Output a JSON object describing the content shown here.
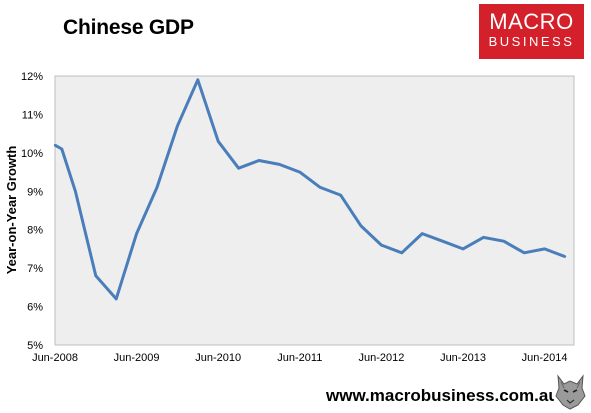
{
  "title": "Chinese GDP",
  "logo": {
    "line1": "MACRO",
    "line2": "BUSINESS",
    "color": "#d4202a"
  },
  "footer": {
    "url": "www.macrobusiness.com.au"
  },
  "chart_data": {
    "type": "line",
    "ylabel": "Year-on-Year Growth",
    "ylim": [
      5,
      12
    ],
    "yticks": [
      "5%",
      "6%",
      "7%",
      "8%",
      "9%",
      "10%",
      "11%",
      "12%"
    ],
    "xticks": [
      "Jun-2008",
      "Jun-2009",
      "Jun-2010",
      "Jun-2011",
      "Jun-2012",
      "Jun-2013",
      "Jun-2014"
    ],
    "grid": false,
    "line_color": "#4a7ebb",
    "series": [
      {
        "x": [
          "Jun-2008",
          "Jul-2008",
          "Sep-2008",
          "Dec-2008",
          "Mar-2009",
          "Jun-2009",
          "Sep-2009",
          "Dec-2009",
          "Mar-2010",
          "Jun-2010",
          "Sep-2010",
          "Dec-2010",
          "Mar-2011",
          "Jun-2011",
          "Sep-2011",
          "Dec-2011",
          "Mar-2012",
          "Jun-2012",
          "Sep-2012",
          "Dec-2012",
          "Mar-2013",
          "Jun-2013",
          "Sep-2013",
          "Dec-2013",
          "Mar-2014",
          "Jun-2014",
          "Sep-2014"
        ],
        "values": [
          10.2,
          10.1,
          9.0,
          6.8,
          6.2,
          7.9,
          9.1,
          10.7,
          11.9,
          10.3,
          9.6,
          9.8,
          9.7,
          9.5,
          9.1,
          8.9,
          8.1,
          7.6,
          7.4,
          7.9,
          7.7,
          7.5,
          7.8,
          7.7,
          7.4,
          7.5,
          7.3
        ]
      }
    ]
  }
}
